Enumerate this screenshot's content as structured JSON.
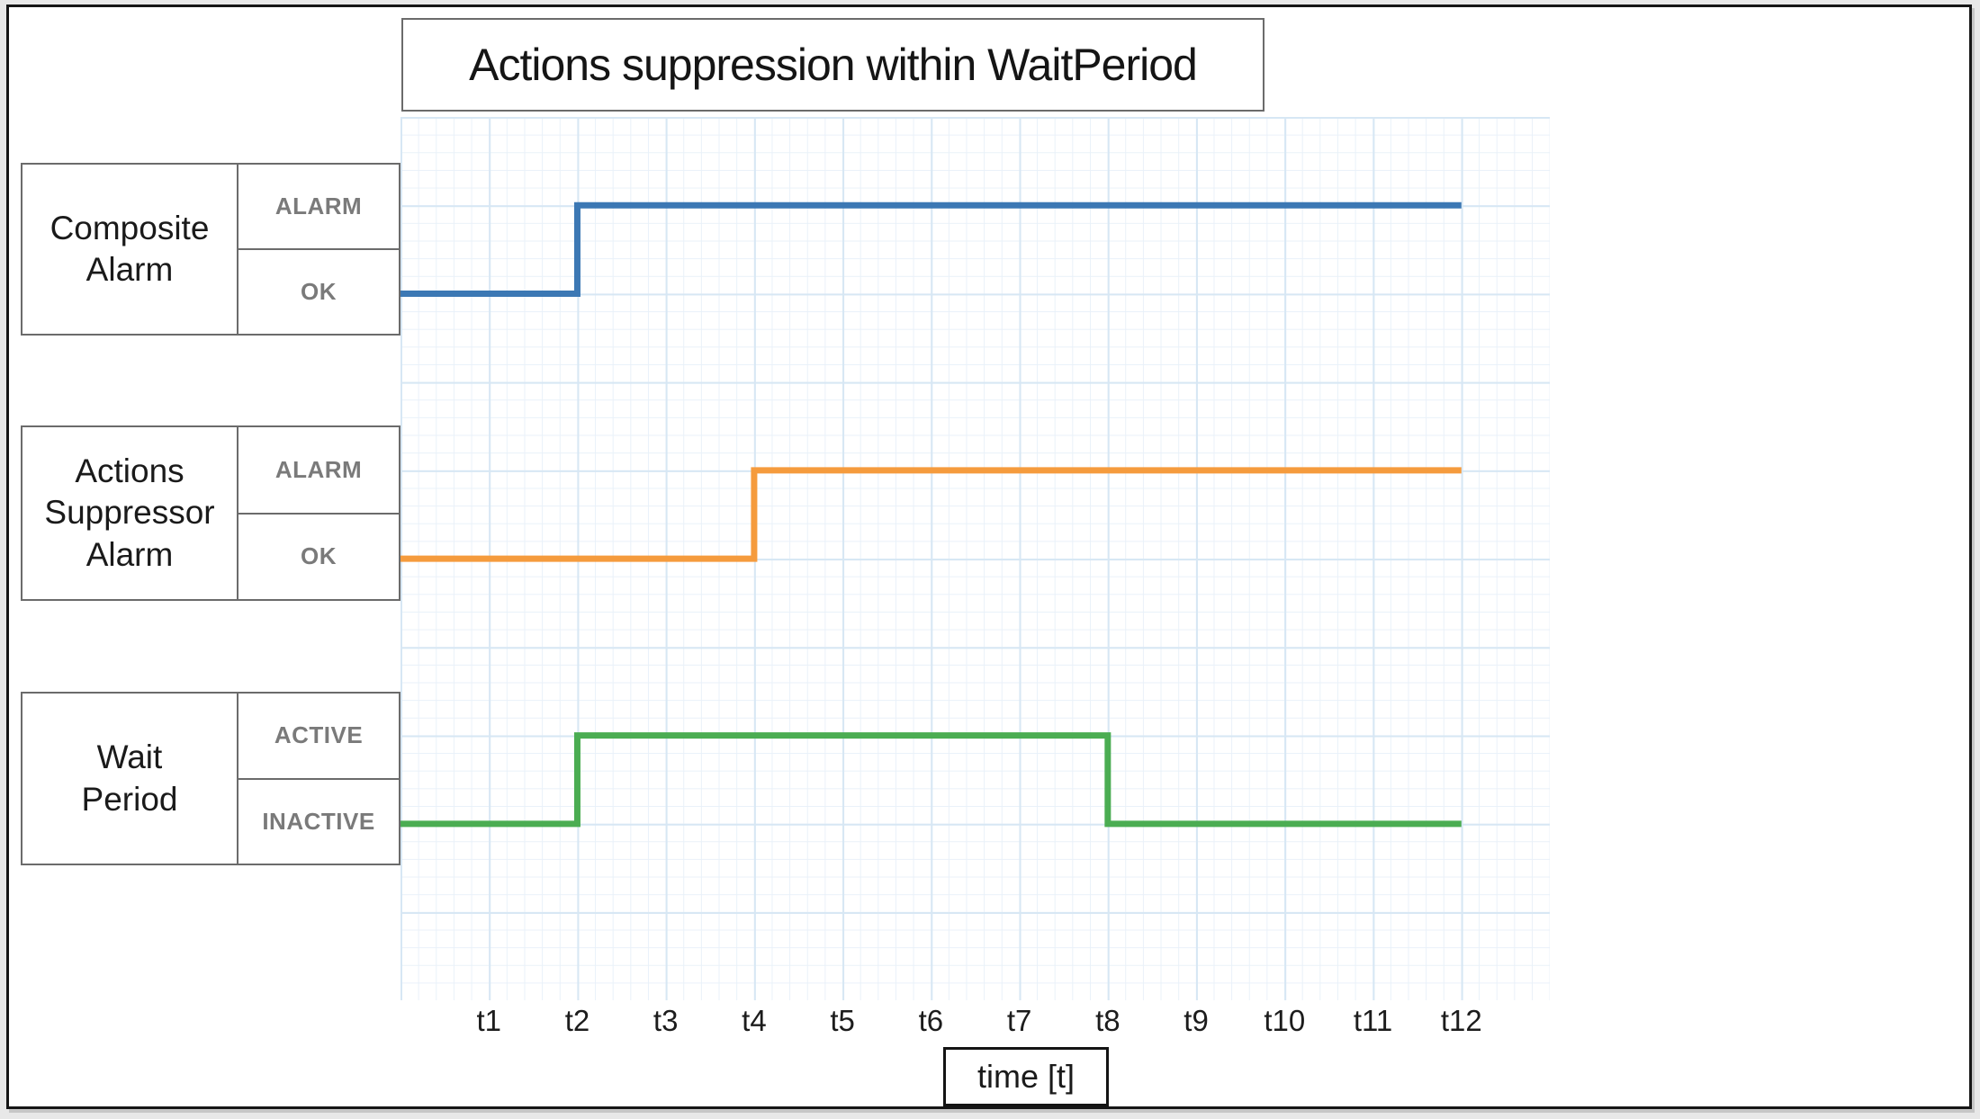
{
  "title": "Actions suppression within WaitPeriod",
  "chart_data": {
    "type": "line",
    "subtype": "step-timing-diagram",
    "title": "Actions suppression within WaitPeriod",
    "xlabel": "time [t]",
    "x_ticks": [
      "t1",
      "t2",
      "t3",
      "t4",
      "t5",
      "t6",
      "t7",
      "t8",
      "t9",
      "t10",
      "t11",
      "t12"
    ],
    "x_axis_units_shown": [
      0,
      13
    ],
    "grid": "minor and major light-blue grid, majors every 1 t-unit",
    "legend_position": "left label boxes",
    "series": [
      {
        "name": "Composite Alarm",
        "display_name": "Composite\nAlarm",
        "color": "#3C78B4",
        "high_label": "ALARM",
        "low_label": "OK",
        "segments": [
          {
            "from": 0,
            "to": 2,
            "level": "low",
            "state": "OK"
          },
          {
            "from": 2,
            "to": 12,
            "level": "high",
            "state": "ALARM"
          }
        ]
      },
      {
        "name": "Actions Suppressor Alarm",
        "display_name": "Actions\nSuppressor\nAlarm",
        "color": "#F59B3D",
        "high_label": "ALARM",
        "low_label": "OK",
        "segments": [
          {
            "from": 0,
            "to": 4,
            "level": "low",
            "state": "OK"
          },
          {
            "from": 4,
            "to": 12,
            "level": "high",
            "state": "ALARM"
          }
        ]
      },
      {
        "name": "Wait Period",
        "display_name": "Wait\nPeriod",
        "color": "#4BAD52",
        "high_label": "ACTIVE",
        "low_label": "INACTIVE",
        "segments": [
          {
            "from": 0,
            "to": 2,
            "level": "low",
            "state": "INACTIVE"
          },
          {
            "from": 2,
            "to": 8,
            "level": "high",
            "state": "ACTIVE"
          },
          {
            "from": 8,
            "to": 12,
            "level": "low",
            "state": "INACTIVE"
          }
        ]
      }
    ]
  },
  "colors": {
    "composite_alarm_line": "#3C78B4",
    "suppressor_alarm_line": "#F59B3D",
    "wait_period_line": "#4BAD52",
    "grid_minor": "#E9F1F9",
    "grid_major": "#D7E7F4",
    "box_border": "#6B6B6B",
    "status_text": "#7A7A7A",
    "frame": "#161616"
  }
}
